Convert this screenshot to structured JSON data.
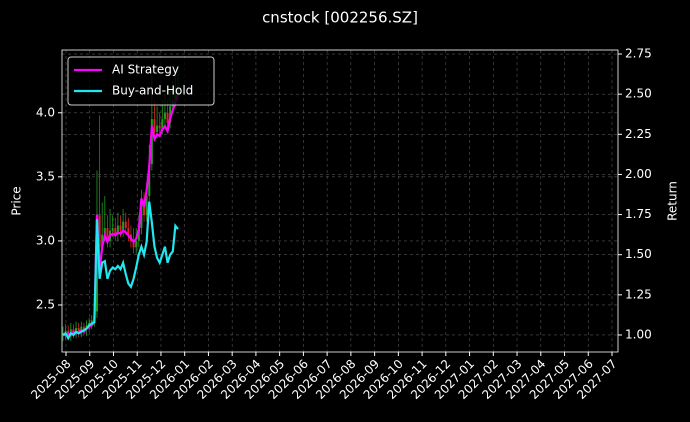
{
  "chart_data": {
    "type": "candlestick",
    "title": "cnstock [002256.SZ]",
    "ylabel": "Price",
    "y2label": "Return",
    "ylim": [
      2.133,
      4.49
    ],
    "yticks": [
      2.5,
      {
        "value": 3.0,
        "label": "3.0"
      },
      3.5,
      {
        "value": 4.0,
        "label": "4.0"
      }
    ],
    "y2lim": [
      0.894,
      2.775
    ],
    "y2ticks": [
      {
        "value": 1.0,
        "label": "1.00"
      },
      1.25,
      {
        "value": 1.5,
        "label": "1.50"
      },
      1.75,
      {
        "value": 2.0,
        "label": "2.00"
      },
      2.25,
      {
        "value": 2.5,
        "label": "2.50"
      },
      2.75
    ],
    "xticks": [
      "2025-08",
      "2025-09",
      "2025-10",
      "2025-11",
      "2025-12",
      "2026-01",
      "2026-02",
      "2026-03",
      "2026-04",
      "2026-05",
      "2026-06",
      "2026-07",
      "2026-08",
      "2026-09",
      "2026-10",
      "2026-11",
      "2026-12",
      "2027-01",
      "2027-02",
      "2027-03",
      "2027-04",
      "2027-05",
      "2027-06",
      "2027-07"
    ],
    "grid": true,
    "legend": "upper left",
    "up_color": "#1f9e1f",
    "down_color": "#d62728",
    "open": [
      2.27,
      2.28,
      2.3,
      2.27,
      2.31,
      2.29,
      2.32,
      2.3,
      2.33,
      2.31,
      2.34,
      2.36,
      2.38,
      2.45,
      3.2,
      2.95,
      3.05,
      3.1,
      3.0,
      3.08,
      3.1,
      3.05,
      3.12,
      3.08,
      3.15,
      3.1,
      3.05,
      3.0,
      2.95,
      3.0,
      3.1,
      3.3,
      3.2,
      3.35,
      3.6,
      3.95,
      3.85,
      3.9,
      3.88,
      3.95,
      4.0,
      3.92,
      4.05,
      4.1,
      4.15
    ],
    "high": [
      2.33,
      2.35,
      2.34,
      2.36,
      2.35,
      2.37,
      2.36,
      2.37,
      2.36,
      2.38,
      2.4,
      2.42,
      2.46,
      3.55,
      3.98,
      3.3,
      3.35,
      3.2,
      3.25,
      3.2,
      3.18,
      3.22,
      3.2,
      3.25,
      3.22,
      3.18,
      3.12,
      3.1,
      3.1,
      3.2,
      3.4,
      3.38,
      3.45,
      3.75,
      4.3,
      4.1,
      4.05,
      4.0,
      4.1,
      4.15,
      4.1,
      4.2,
      4.25,
      4.3,
      4.35
    ],
    "low": [
      2.22,
      2.23,
      2.25,
      2.22,
      2.24,
      2.24,
      2.25,
      2.25,
      2.26,
      2.26,
      2.29,
      2.31,
      2.33,
      2.4,
      2.85,
      2.9,
      3.0,
      2.95,
      2.95,
      3.03,
      3.0,
      3.0,
      3.03,
      3.03,
      3.05,
      3.0,
      2.95,
      2.9,
      2.9,
      2.95,
      3.05,
      3.15,
      3.15,
      3.3,
      3.55,
      3.8,
      3.8,
      3.83,
      3.83,
      3.9,
      3.85,
      3.88,
      4.0,
      4.05,
      4.1
    ],
    "close": [
      2.28,
      2.3,
      2.27,
      2.31,
      2.29,
      2.32,
      2.3,
      2.33,
      2.31,
      2.34,
      2.36,
      2.38,
      2.4,
      3.2,
      2.95,
      3.05,
      3.1,
      3.0,
      3.08,
      3.1,
      3.05,
      3.12,
      3.08,
      3.15,
      3.1,
      3.05,
      3.0,
      2.95,
      3.0,
      3.1,
      3.3,
      3.2,
      3.35,
      3.6,
      3.95,
      3.85,
      3.9,
      3.88,
      3.95,
      4.0,
      3.92,
      4.05,
      4.1,
      4.15,
      4.2
    ],
    "series": [
      {
        "name": "AI Strategy",
        "color": "#ff00ff",
        "axis": "y2",
        "values": [
          1.0,
          1.0,
          1.01,
          1.0,
          1.02,
          1.01,
          1.02,
          1.03,
          1.02,
          1.04,
          1.05,
          1.06,
          1.08,
          1.75,
          1.4,
          1.55,
          1.62,
          1.58,
          1.62,
          1.63,
          1.62,
          1.64,
          1.63,
          1.65,
          1.64,
          1.62,
          1.6,
          1.58,
          1.6,
          1.65,
          1.85,
          1.8,
          1.9,
          2.05,
          2.3,
          2.22,
          2.25,
          2.24,
          2.28,
          2.3,
          2.27,
          2.35,
          2.4,
          2.45,
          2.5
        ]
      },
      {
        "name": "Buy-and-Hold",
        "color": "#22e6f0",
        "axis": "y2",
        "values": [
          1.0,
          1.01,
          0.98,
          1.01,
          1.0,
          1.02,
          1.01,
          1.02,
          1.03,
          1.04,
          1.06,
          1.07,
          1.08,
          1.72,
          1.35,
          1.45,
          1.46,
          1.35,
          1.4,
          1.42,
          1.41,
          1.43,
          1.41,
          1.45,
          1.38,
          1.32,
          1.3,
          1.35,
          1.42,
          1.5,
          1.55,
          1.5,
          1.58,
          1.83,
          1.7,
          1.55,
          1.48,
          1.45,
          1.5,
          1.55,
          1.45,
          1.5,
          1.52,
          1.68,
          1.66
        ]
      }
    ]
  }
}
